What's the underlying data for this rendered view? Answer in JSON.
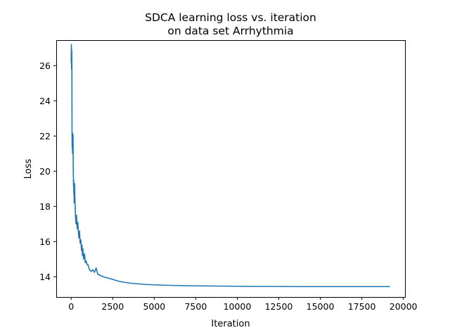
{
  "chart_data": {
    "type": "line",
    "title_lines": [
      "SDCA learning loss vs. iteration",
      "on data set Arrhythmia"
    ],
    "xlabel": "Iteration",
    "ylabel": "Loss",
    "xlim": [
      -900,
      20100
    ],
    "ylim": [
      12.85,
      27.45
    ],
    "x_ticks": [
      0,
      2500,
      5000,
      7500,
      10000,
      12500,
      15000,
      17500,
      20000
    ],
    "x_tick_labels": [
      "0",
      "2500",
      "5000",
      "7500",
      "10000",
      "12500",
      "15000",
      "17500",
      "20000"
    ],
    "y_ticks": [
      14,
      16,
      18,
      20,
      22,
      24,
      26
    ],
    "y_tick_labels": [
      "14",
      "16",
      "18",
      "20",
      "22",
      "24",
      "26"
    ],
    "grid": false,
    "series": [
      {
        "color": "#1f77b4",
        "x": [
          0,
          10,
          20,
          30,
          40,
          50,
          60,
          70,
          80,
          90,
          100,
          110,
          120,
          130,
          140,
          150,
          160,
          170,
          180,
          190,
          200,
          230,
          260,
          290,
          320,
          350,
          380,
          400,
          430,
          460,
          500,
          540,
          580,
          620,
          650,
          680,
          700,
          750,
          800,
          850,
          900,
          950,
          1000,
          1100,
          1200,
          1300,
          1400,
          1500,
          1600,
          1800,
          2000,
          2200,
          2400,
          2600,
          2800,
          3000,
          3300,
          3600,
          4000,
          4500,
          5000,
          6000,
          7000,
          8000,
          9000,
          10000,
          11000,
          12000,
          14000,
          16000,
          18000,
          19200
        ],
        "values": [
          26.2,
          27.2,
          25.8,
          26.9,
          26.0,
          22.1,
          21.3,
          22.2,
          21.0,
          22.0,
          21.4,
          22.1,
          20.5,
          19.8,
          19.1,
          19.5,
          18.7,
          19.3,
          18.2,
          18.9,
          19.3,
          18.3,
          17.4,
          17.0,
          17.5,
          16.9,
          16.7,
          17.1,
          16.6,
          16.2,
          16.6,
          15.9,
          16.1,
          15.5,
          15.8,
          15.2,
          15.6,
          15.0,
          15.3,
          14.8,
          14.9,
          14.7,
          14.7,
          14.4,
          14.3,
          14.4,
          14.25,
          14.5,
          14.15,
          14.05,
          13.98,
          13.93,
          13.88,
          13.82,
          13.76,
          13.72,
          13.67,
          13.63,
          13.6,
          13.56,
          13.54,
          13.51,
          13.49,
          13.48,
          13.47,
          13.46,
          13.45,
          13.45,
          13.44,
          13.44,
          13.44,
          13.44
        ]
      }
    ]
  }
}
